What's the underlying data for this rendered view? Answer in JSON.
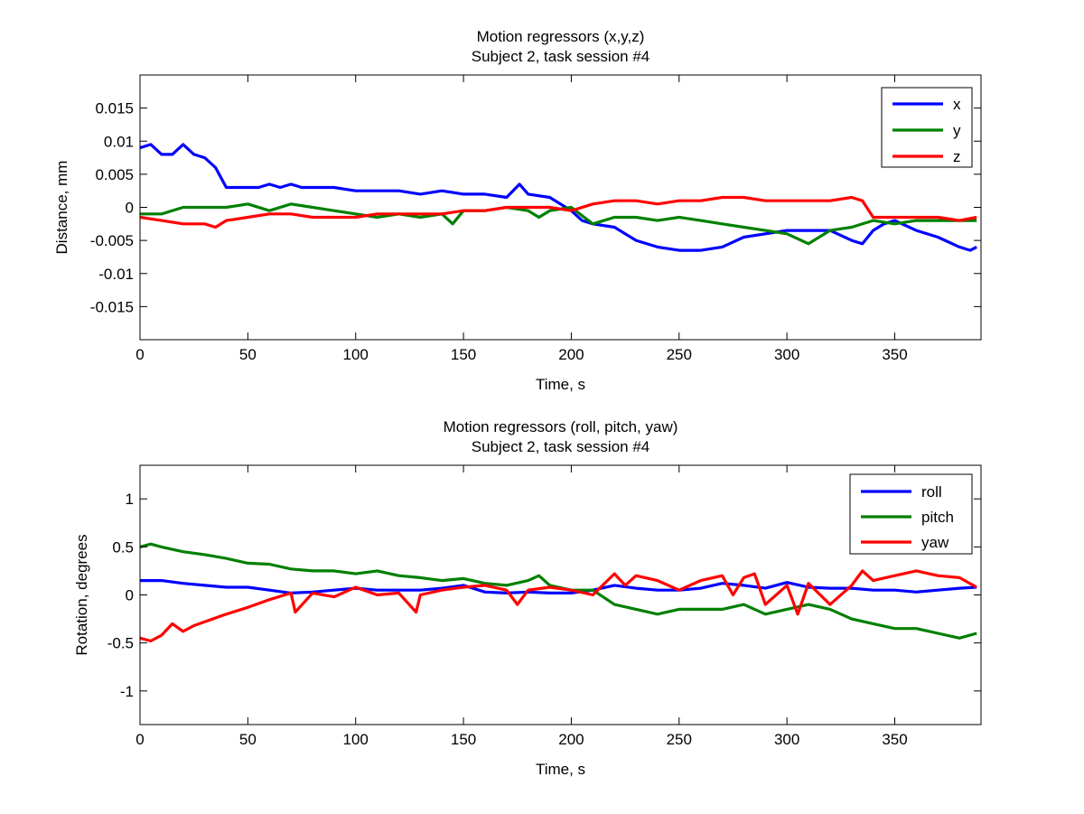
{
  "chart_data": [
    {
      "type": "line",
      "title": "Motion regressors (x,y,z)",
      "subtitle": "Subject 2, task session #4",
      "xlabel": "Time, s",
      "ylabel": "Distance, mm",
      "xlim": [
        0,
        390
      ],
      "ylim": [
        -0.02,
        0.02
      ],
      "xticks": [
        0,
        50,
        100,
        150,
        200,
        250,
        300,
        350
      ],
      "yticks": [
        -0.015,
        -0.01,
        -0.005,
        0,
        0.005,
        0.01,
        0.015
      ],
      "ytick_labels": [
        "-0.015",
        "-0.01",
        "-0.005",
        "0",
        "0.005",
        "0.01",
        "0.015"
      ],
      "grid": false,
      "legend_position": "top-right",
      "series": [
        {
          "name": "x",
          "color": "#0000ff",
          "x": [
            0,
            5,
            10,
            15,
            20,
            25,
            30,
            35,
            40,
            45,
            50,
            55,
            60,
            65,
            70,
            75,
            80,
            90,
            100,
            110,
            120,
            130,
            140,
            150,
            160,
            170,
            176,
            180,
            190,
            200,
            205,
            210,
            220,
            230,
            240,
            250,
            260,
            270,
            280,
            290,
            300,
            310,
            320,
            330,
            335,
            340,
            345,
            350,
            360,
            370,
            380,
            385,
            388
          ],
          "y": [
            0.009,
            0.0095,
            0.008,
            0.008,
            0.0095,
            0.008,
            0.0075,
            0.006,
            0.003,
            0.003,
            0.003,
            0.003,
            0.0035,
            0.003,
            0.0035,
            0.003,
            0.003,
            0.003,
            0.0025,
            0.0025,
            0.0025,
            0.002,
            0.0025,
            0.002,
            0.002,
            0.0015,
            0.0035,
            0.002,
            0.0015,
            -0.0005,
            -0.002,
            -0.0025,
            -0.003,
            -0.005,
            -0.006,
            -0.0065,
            -0.0065,
            -0.006,
            -0.0045,
            -0.004,
            -0.0035,
            -0.0035,
            -0.0035,
            -0.005,
            -0.0055,
            -0.0035,
            -0.0025,
            -0.002,
            -0.0035,
            -0.0045,
            -0.006,
            -0.0065,
            -0.006
          ]
        },
        {
          "name": "y",
          "color": "#008000",
          "x": [
            0,
            10,
            20,
            30,
            40,
            50,
            60,
            70,
            80,
            90,
            100,
            110,
            120,
            130,
            140,
            145,
            150,
            160,
            170,
            180,
            185,
            190,
            200,
            210,
            220,
            230,
            240,
            250,
            260,
            270,
            280,
            290,
            300,
            310,
            320,
            330,
            340,
            350,
            360,
            370,
            380,
            388
          ],
          "y": [
            -0.001,
            -0.001,
            0,
            0,
            0,
            0.0005,
            -0.0005,
            0.0005,
            0,
            -0.0005,
            -0.001,
            -0.0015,
            -0.001,
            -0.0015,
            -0.001,
            -0.0025,
            -0.0005,
            -0.0005,
            0,
            -0.0005,
            -0.0015,
            -0.0005,
            0,
            -0.0025,
            -0.0015,
            -0.0015,
            -0.002,
            -0.0015,
            -0.002,
            -0.0025,
            -0.003,
            -0.0035,
            -0.004,
            -0.0055,
            -0.0035,
            -0.003,
            -0.002,
            -0.0025,
            -0.002,
            -0.002,
            -0.002,
            -0.002
          ]
        },
        {
          "name": "z",
          "color": "#ff0000",
          "x": [
            0,
            10,
            20,
            30,
            35,
            40,
            50,
            60,
            70,
            80,
            90,
            100,
            110,
            120,
            130,
            140,
            150,
            160,
            170,
            180,
            190,
            200,
            210,
            220,
            230,
            240,
            250,
            260,
            270,
            280,
            290,
            300,
            310,
            320,
            330,
            335,
            340,
            345,
            350,
            360,
            370,
            380,
            388
          ],
          "y": [
            -0.0015,
            -0.002,
            -0.0025,
            -0.0025,
            -0.003,
            -0.002,
            -0.0015,
            -0.001,
            -0.001,
            -0.0015,
            -0.0015,
            -0.0015,
            -0.001,
            -0.001,
            -0.001,
            -0.001,
            -0.0005,
            -0.0005,
            0,
            0,
            0,
            -0.0005,
            0.0005,
            0.001,
            0.001,
            0.0005,
            0.001,
            0.001,
            0.0015,
            0.0015,
            0.001,
            0.001,
            0.001,
            0.001,
            0.0015,
            0.001,
            -0.0015,
            -0.0015,
            -0.0015,
            -0.0015,
            -0.0015,
            -0.002,
            -0.0015
          ]
        }
      ]
    },
    {
      "type": "line",
      "title": "Motion regressors (roll, pitch, yaw)",
      "subtitle": "Subject 2, task session #4",
      "xlabel": "Time, s",
      "ylabel": "Rotation, degrees",
      "xlim": [
        0,
        390
      ],
      "ylim": [
        -1.35,
        1.35
      ],
      "xticks": [
        0,
        50,
        100,
        150,
        200,
        250,
        300,
        350
      ],
      "yticks": [
        -1,
        -0.5,
        0,
        0.5,
        1
      ],
      "ytick_labels": [
        "-1",
        "-0.5",
        "0",
        "0.5",
        "1"
      ],
      "grid": false,
      "legend_position": "top-right",
      "series": [
        {
          "name": "roll",
          "color": "#0000ff",
          "x": [
            0,
            10,
            20,
            30,
            40,
            50,
            60,
            70,
            80,
            90,
            100,
            110,
            120,
            130,
            140,
            150,
            160,
            170,
            180,
            190,
            200,
            210,
            220,
            230,
            240,
            250,
            260,
            270,
            280,
            290,
            300,
            310,
            320,
            330,
            340,
            350,
            360,
            370,
            380,
            388
          ],
          "y": [
            0.15,
            0.15,
            0.12,
            0.1,
            0.08,
            0.08,
            0.05,
            0.02,
            0.03,
            0.05,
            0.07,
            0.05,
            0.05,
            0.05,
            0.07,
            0.1,
            0.03,
            0.02,
            0.03,
            0.02,
            0.02,
            0.05,
            0.1,
            0.07,
            0.05,
            0.05,
            0.07,
            0.12,
            0.1,
            0.07,
            0.13,
            0.08,
            0.07,
            0.07,
            0.05,
            0.05,
            0.03,
            0.05,
            0.07,
            0.08
          ]
        },
        {
          "name": "pitch",
          "color": "#008000",
          "x": [
            0,
            5,
            10,
            20,
            30,
            40,
            50,
            60,
            70,
            80,
            90,
            100,
            110,
            120,
            130,
            140,
            150,
            160,
            170,
            180,
            185,
            190,
            200,
            210,
            220,
            230,
            240,
            250,
            260,
            270,
            280,
            290,
            300,
            310,
            320,
            330,
            340,
            350,
            360,
            370,
            380,
            388
          ],
          "y": [
            0.5,
            0.53,
            0.5,
            0.45,
            0.42,
            0.38,
            0.33,
            0.32,
            0.27,
            0.25,
            0.25,
            0.22,
            0.25,
            0.2,
            0.18,
            0.15,
            0.17,
            0.12,
            0.1,
            0.15,
            0.2,
            0.1,
            0.05,
            0.05,
            -0.1,
            -0.15,
            -0.2,
            -0.15,
            -0.15,
            -0.15,
            -0.1,
            -0.2,
            -0.15,
            -0.1,
            -0.15,
            -0.25,
            -0.3,
            -0.35,
            -0.35,
            -0.4,
            -0.45,
            -0.4
          ]
        },
        {
          "name": "yaw",
          "color": "#ff0000",
          "x": [
            0,
            5,
            10,
            15,
            20,
            25,
            30,
            40,
            50,
            60,
            70,
            72,
            80,
            90,
            100,
            110,
            120,
            128,
            130,
            140,
            150,
            160,
            170,
            175,
            180,
            190,
            200,
            210,
            220,
            225,
            230,
            240,
            250,
            260,
            270,
            275,
            280,
            285,
            290,
            300,
            305,
            310,
            320,
            330,
            335,
            340,
            350,
            360,
            370,
            380,
            388
          ],
          "y": [
            -0.45,
            -0.48,
            -0.42,
            -0.3,
            -0.38,
            -0.32,
            -0.28,
            -0.2,
            -0.13,
            -0.05,
            0.02,
            -0.18,
            0.02,
            -0.02,
            0.08,
            0.0,
            0.02,
            -0.18,
            0.0,
            0.05,
            0.08,
            0.1,
            0.05,
            -0.1,
            0.05,
            0.08,
            0.05,
            0.0,
            0.22,
            0.1,
            0.2,
            0.15,
            0.05,
            0.15,
            0.2,
            0.0,
            0.18,
            0.22,
            -0.1,
            0.1,
            -0.2,
            0.12,
            -0.1,
            0.1,
            0.25,
            0.15,
            0.2,
            0.25,
            0.2,
            0.18,
            0.08
          ]
        }
      ]
    }
  ]
}
